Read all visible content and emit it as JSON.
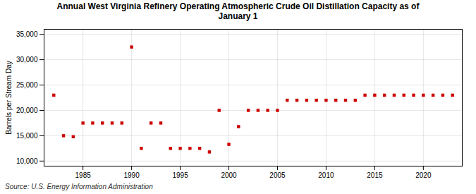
{
  "chart_data": {
    "type": "scatter",
    "title": "Annual West Virginia Refinery Operating Atmospheric Crude Oil Distillation Capacity as of\nJanuary  1",
    "ylabel": "Barrels per Stream Day",
    "source": "Source: U.S. Energy Information Administration",
    "x": [
      1982,
      1983,
      1984,
      1985,
      1986,
      1987,
      1988,
      1989,
      1990,
      1991,
      1992,
      1993,
      1994,
      1995,
      1996,
      1997,
      1998,
      1999,
      2000,
      2001,
      2002,
      2003,
      2004,
      2005,
      2006,
      2007,
      2008,
      2009,
      2010,
      2011,
      2012,
      2013,
      2014,
      2015,
      2016,
      2017,
      2018,
      2019,
      2020,
      2021,
      2022,
      2023
    ],
    "values": [
      23000,
      15000,
      14800,
      17500,
      17500,
      17500,
      17500,
      17500,
      32500,
      12500,
      17500,
      17500,
      12500,
      12500,
      12500,
      12500,
      11800,
      20000,
      13300,
      16800,
      20000,
      20000,
      20000,
      20000,
      22000,
      22000,
      22000,
      22000,
      22000,
      22000,
      22000,
      22000,
      23000,
      23000,
      23000,
      23000,
      23000,
      23000,
      23000,
      23000,
      23000,
      23000
    ],
    "color": "#cc0000",
    "marker": "square",
    "xlim": [
      1981,
      2024
    ],
    "xticks": [
      1985,
      1990,
      1995,
      2000,
      2005,
      2010,
      2015,
      2020
    ],
    "ylim": [
      9000,
      36000
    ],
    "yticks": [
      {
        "value": 10000,
        "label": "10,000"
      },
      {
        "value": 15000,
        "label": "15,000"
      },
      {
        "value": 20000,
        "label": "20,000"
      },
      {
        "value": 25000,
        "label": "25,000"
      },
      {
        "value": 30000,
        "label": "30,000"
      },
      {
        "value": 35000,
        "label": "35,000"
      }
    ],
    "grid": true
  }
}
